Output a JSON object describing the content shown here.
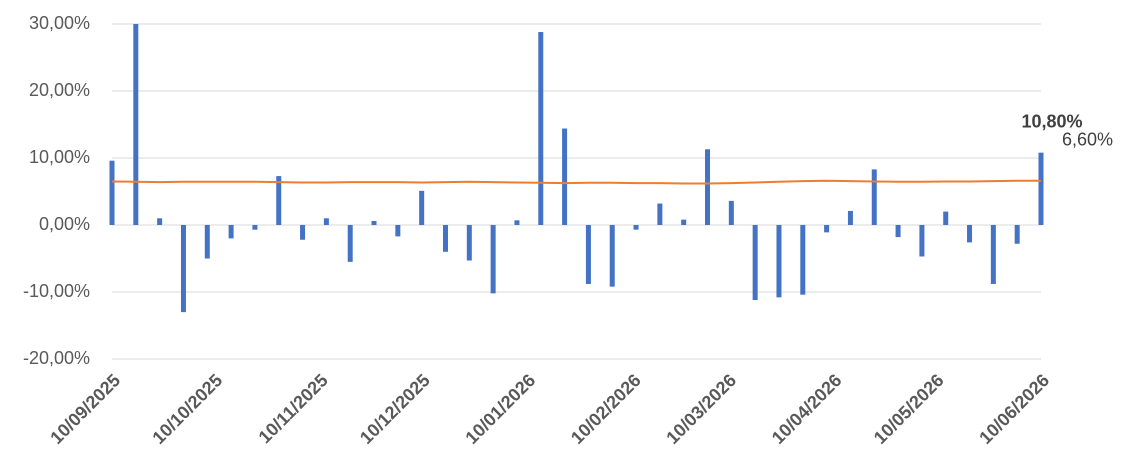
{
  "chart_data": {
    "type": "bar_line",
    "x": [
      "2025-09-10",
      "2025-09-17",
      "2025-09-24",
      "2025-10-01",
      "2025-10-08",
      "2025-10-15",
      "2025-10-22",
      "2025-10-29",
      "2025-11-05",
      "2025-11-12",
      "2025-11-19",
      "2025-11-26",
      "2025-12-03",
      "2025-12-10",
      "2025-12-17",
      "2025-12-24",
      "2025-12-31",
      "2026-01-07",
      "2026-01-14",
      "2026-01-21",
      "2026-01-28",
      "2026-02-04",
      "2026-02-11",
      "2026-02-18",
      "2026-02-25",
      "2026-03-04",
      "2026-03-11",
      "2026-03-18",
      "2026-03-25",
      "2026-04-01",
      "2026-04-08",
      "2026-04-15",
      "2026-04-22",
      "2026-04-29",
      "2026-05-06",
      "2026-05-13",
      "2026-05-20",
      "2026-05-27",
      "2026-06-03",
      "2026-06-10"
    ],
    "series": [
      {
        "kind": "bar",
        "color": "#4472c4",
        "values": [
          9.6,
          30.0,
          1.0,
          -13.0,
          -5.0,
          -2.0,
          -0.7,
          7.3,
          -2.2,
          1.0,
          -5.5,
          0.6,
          -1.7,
          5.1,
          -4.0,
          -5.3,
          -10.2,
          0.7,
          28.8,
          14.4,
          -8.8,
          -9.2,
          -0.7,
          3.2,
          0.8,
          11.3,
          3.6,
          -11.2,
          -10.8,
          -10.4,
          -1.1,
          2.1,
          8.3,
          -1.8,
          -4.7,
          2.0,
          -2.6,
          -8.8,
          -2.8,
          10.8
        ],
        "value_labels": {
          "39": "10,80%"
        }
      },
      {
        "kind": "line",
        "color": "#ed7d31",
        "values": [
          6.5,
          6.45,
          6.4,
          6.45,
          6.45,
          6.45,
          6.45,
          6.4,
          6.35,
          6.35,
          6.4,
          6.4,
          6.4,
          6.35,
          6.4,
          6.45,
          6.4,
          6.35,
          6.3,
          6.25,
          6.3,
          6.3,
          6.25,
          6.25,
          6.2,
          6.2,
          6.25,
          6.35,
          6.45,
          6.55,
          6.6,
          6.55,
          6.5,
          6.45,
          6.45,
          6.5,
          6.5,
          6.55,
          6.6,
          6.6
        ],
        "value_labels": {
          "39": "6,60%"
        }
      }
    ],
    "xlim": [
      "2025-09-10",
      "2026-06-10"
    ],
    "xticks": [
      {
        "value": "2025-09-10",
        "label": "10/09/2025"
      },
      {
        "value": "2025-10-10",
        "label": "10/10/2025"
      },
      {
        "value": "2025-11-10",
        "label": "10/11/2025"
      },
      {
        "value": "2025-12-10",
        "label": "10/12/2025"
      },
      {
        "value": "2026-01-10",
        "label": "10/01/2026"
      },
      {
        "value": "2026-02-10",
        "label": "10/02/2026"
      },
      {
        "value": "2026-03-10",
        "label": "10/03/2026"
      },
      {
        "value": "2026-04-10",
        "label": "10/04/2026"
      },
      {
        "value": "2026-05-10",
        "label": "10/05/2026"
      },
      {
        "value": "2026-06-10",
        "label": "10/06/2026"
      }
    ],
    "ylim": [
      -20,
      30
    ],
    "yticks": [
      {
        "value": -20,
        "label": "-20,00%"
      },
      {
        "value": -10,
        "label": "-10,00%"
      },
      {
        "value": 0,
        "label": "0,00%"
      },
      {
        "value": 10,
        "label": "10,00%"
      },
      {
        "value": 20,
        "label": "20,00%"
      },
      {
        "value": 30,
        "label": "30,00%"
      }
    ],
    "grid": true
  }
}
